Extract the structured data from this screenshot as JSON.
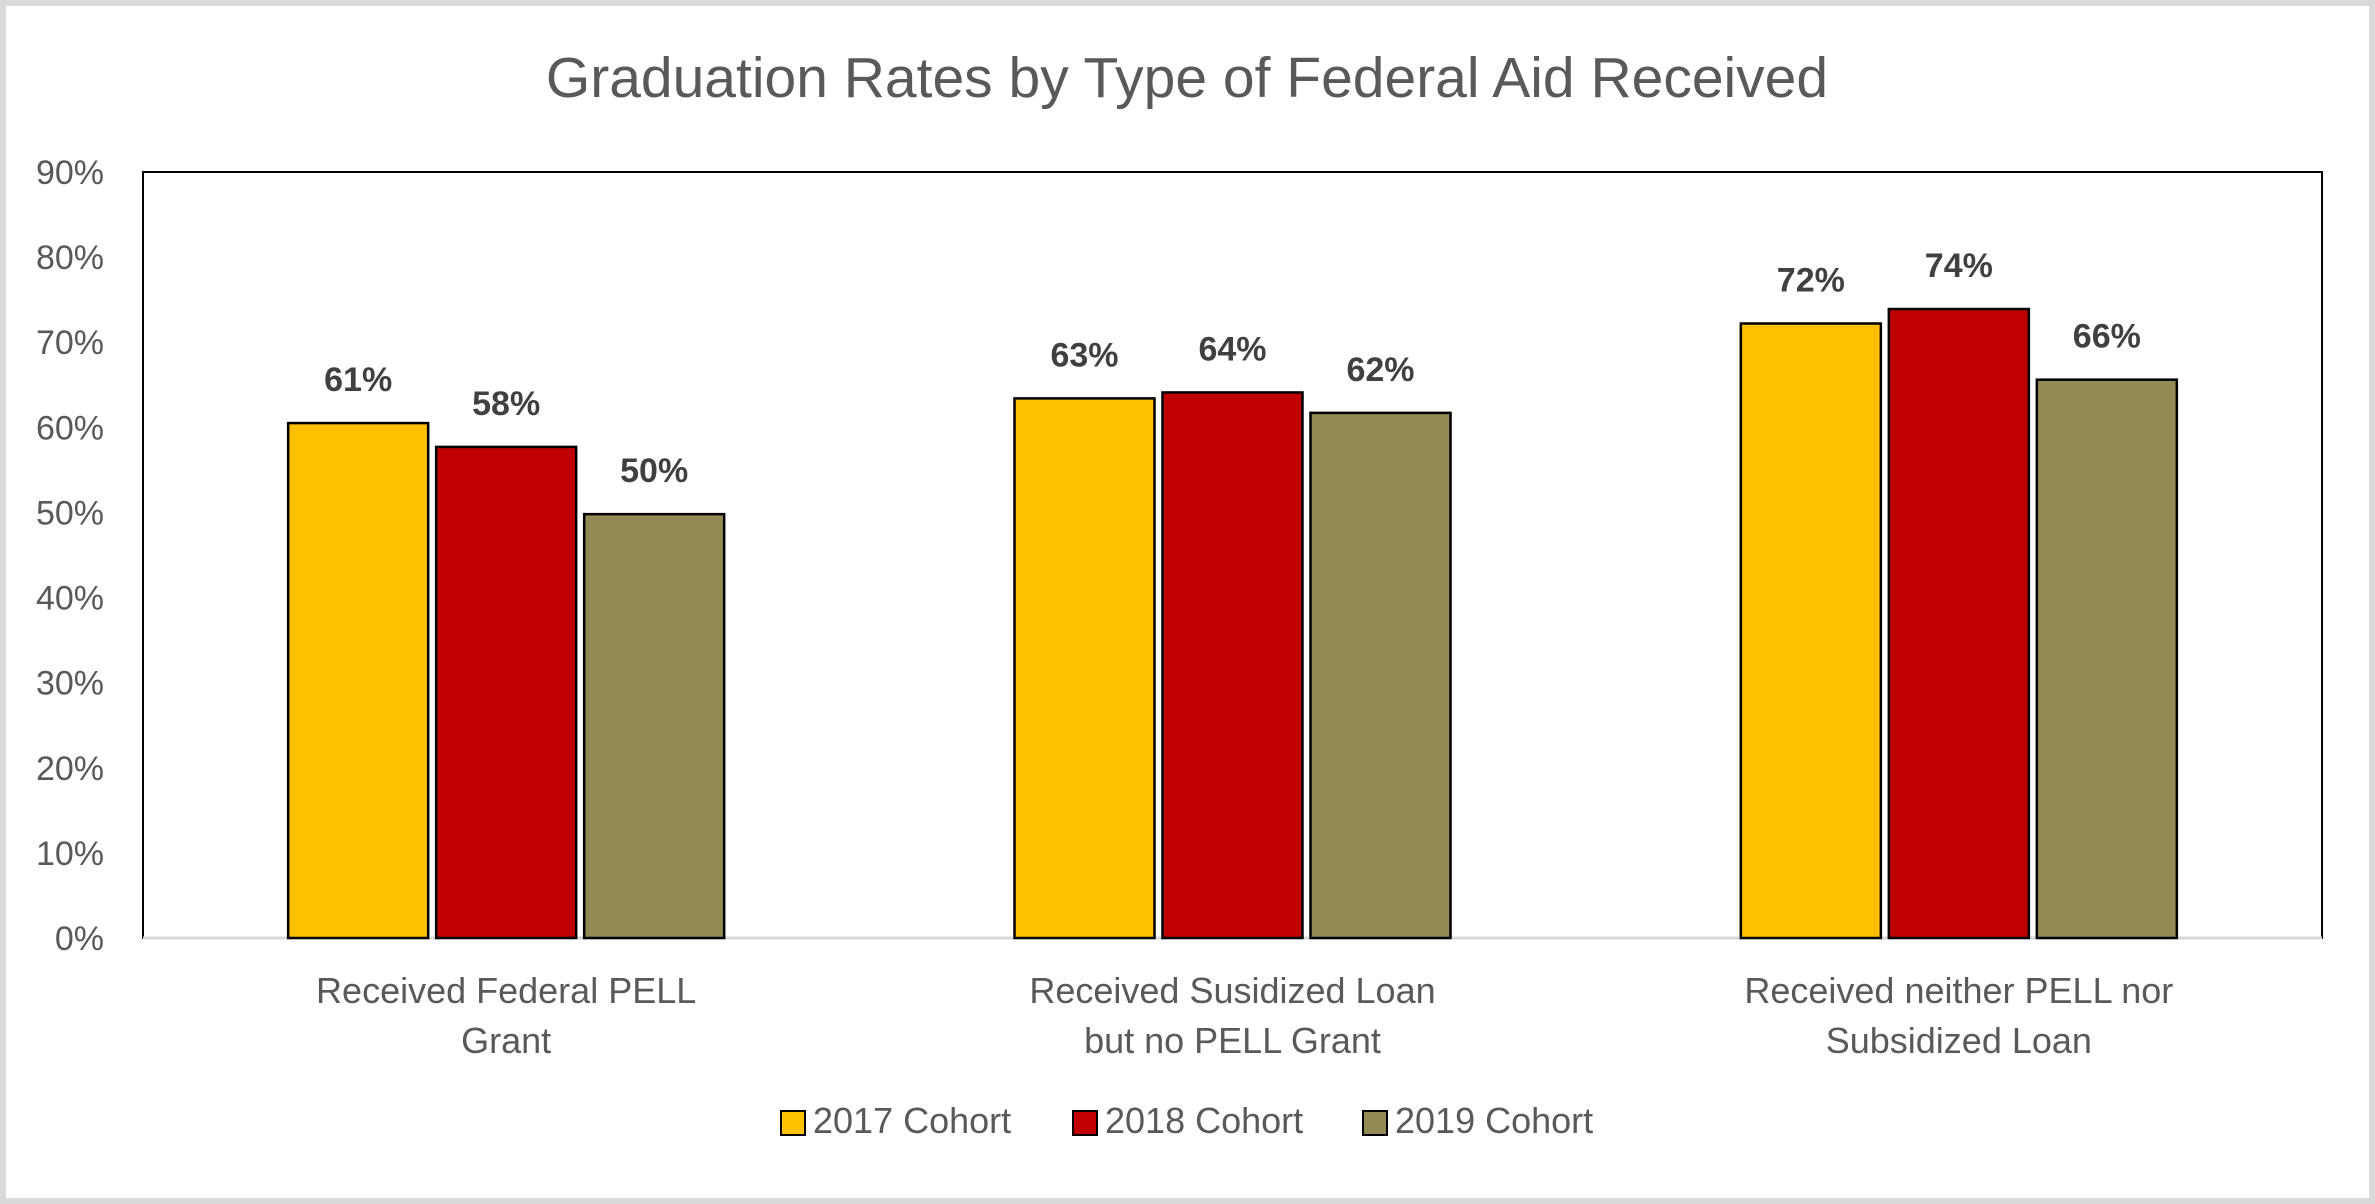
{
  "chart_data": {
    "type": "bar",
    "title": "Graduation Rates by Type of Federal Aid Received",
    "categories": [
      [
        "Received Federal PELL",
        "Grant"
      ],
      [
        "Received Susidized Loan",
        "but no PELL Grant"
      ],
      [
        "Received neither PELL nor",
        "Subsidized Loan"
      ]
    ],
    "series": [
      {
        "name": "2017 Cohort",
        "color": "#FFC000",
        "values": [
          60.5,
          63.4,
          72.2
        ],
        "labels": [
          "61%",
          "63%",
          "72%"
        ]
      },
      {
        "name": "2018 Cohort",
        "color": "#C00000",
        "values": [
          57.7,
          64.1,
          73.9
        ],
        "labels": [
          "58%",
          "64%",
          "74%"
        ]
      },
      {
        "name": "2019 Cohort",
        "color": "#948A54",
        "values": [
          49.8,
          61.7,
          65.6
        ],
        "labels": [
          "50%",
          "62%",
          "66%"
        ]
      }
    ],
    "yticks": [
      "0%",
      "10%",
      "20%",
      "30%",
      "40%",
      "50%",
      "60%",
      "70%",
      "80%",
      "90%"
    ],
    "ylim": [
      0,
      90
    ],
    "legend_position": "bottom",
    "grid": false
  }
}
